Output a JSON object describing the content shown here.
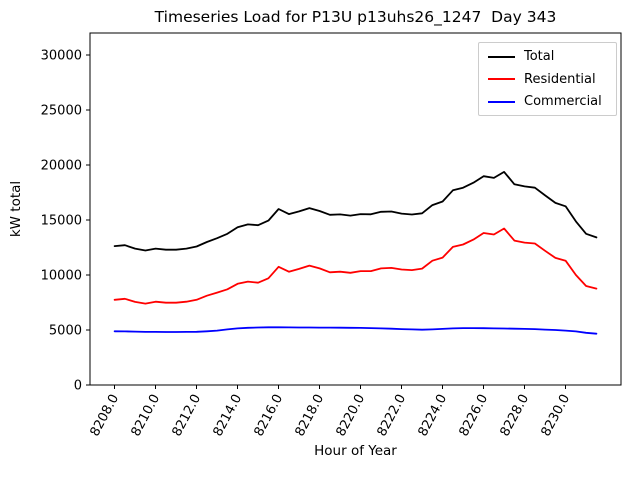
{
  "chart_data": {
    "type": "line",
    "title": "Timeseries Load for P13U p13uhs26_1247  Day 343",
    "xlabel": "Hour of Year",
    "ylabel": "kW total",
    "xlim": [
      8206.8,
      8232.7
    ],
    "ylim": [
      0,
      32000
    ],
    "xticks": [
      8208,
      8210,
      8212,
      8214,
      8216,
      8218,
      8220,
      8222,
      8224,
      8226,
      8228,
      8230
    ],
    "xtick_labels": [
      "8208.0",
      "8210.0",
      "8212.0",
      "8214.0",
      "8216.0",
      "8218.0",
      "8220.0",
      "8222.0",
      "8224.0",
      "8226.0",
      "8228.0",
      "8230.0"
    ],
    "yticks": [
      0,
      5000,
      10000,
      15000,
      20000,
      25000,
      30000
    ],
    "ytick_labels": [
      "0",
      "5000",
      "10000",
      "15000",
      "20000",
      "25000",
      "30000"
    ],
    "grid": false,
    "legend": {
      "position": "upper right",
      "entries": [
        "Total",
        "Residential",
        "Commercial"
      ]
    },
    "x": [
      8208.0,
      8208.5,
      8209.0,
      8209.5,
      8210.0,
      8210.5,
      8211.0,
      8211.5,
      8212.0,
      8212.5,
      8213.0,
      8213.5,
      8214.0,
      8214.5,
      8215.0,
      8215.5,
      8216.0,
      8216.5,
      8217.0,
      8217.5,
      8218.0,
      8218.5,
      8219.0,
      8219.5,
      8220.0,
      8220.5,
      8221.0,
      8221.5,
      8222.0,
      8222.5,
      8223.0,
      8223.5,
      8224.0,
      8224.5,
      8225.0,
      8225.5,
      8226.0,
      8226.5,
      8227.0,
      8227.5,
      8228.0,
      8228.5,
      8229.0,
      8229.5,
      8230.0,
      8230.5,
      8231.0,
      8231.5
    ],
    "series": [
      {
        "name": "Total",
        "color": "#000000",
        "values": [
          12630,
          12710,
          12400,
          12230,
          12400,
          12300,
          12300,
          12400,
          12590,
          13000,
          13350,
          13750,
          14350,
          14600,
          14530,
          14950,
          16000,
          15540,
          15780,
          16080,
          15820,
          15470,
          15510,
          15400,
          15540,
          15520,
          15750,
          15770,
          15580,
          15500,
          15610,
          16350,
          16680,
          17700,
          17940,
          18390,
          18980,
          18830,
          19370,
          18250,
          18050,
          17940,
          17240,
          16550,
          16250,
          14870,
          13750,
          13420
        ]
      },
      {
        "name": "Residential",
        "color": "#ff0000",
        "values": [
          7750,
          7840,
          7550,
          7400,
          7570,
          7480,
          7480,
          7570,
          7750,
          8120,
          8400,
          8700,
          9200,
          9400,
          9300,
          9700,
          10750,
          10300,
          10550,
          10850,
          10600,
          10250,
          10300,
          10200,
          10350,
          10350,
          10600,
          10650,
          10500,
          10450,
          10580,
          11300,
          11580,
          12550,
          12770,
          13220,
          13820,
          13680,
          14230,
          13130,
          12950,
          12860,
          12200,
          11550,
          11300,
          10000,
          9000,
          8760
        ]
      },
      {
        "name": "Commercial",
        "color": "#0000ff",
        "values": [
          4880,
          4870,
          4850,
          4830,
          4830,
          4820,
          4820,
          4830,
          4840,
          4880,
          4950,
          5050,
          5150,
          5200,
          5230,
          5250,
          5250,
          5240,
          5230,
          5230,
          5220,
          5220,
          5210,
          5200,
          5190,
          5170,
          5150,
          5120,
          5080,
          5050,
          5030,
          5050,
          5100,
          5150,
          5170,
          5170,
          5160,
          5150,
          5140,
          5120,
          5100,
          5080,
          5040,
          5000,
          4950,
          4870,
          4750,
          4660
        ]
      }
    ]
  }
}
